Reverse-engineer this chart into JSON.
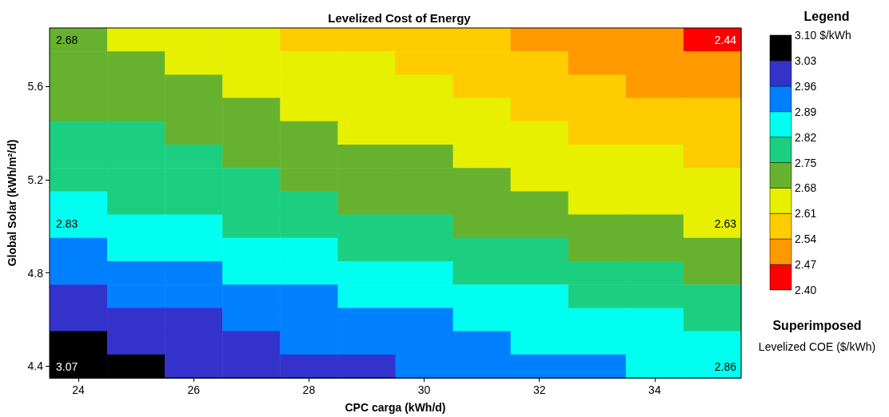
{
  "chart_data": {
    "type": "heatmap",
    "title": "Levelized Cost of Energy",
    "xlabel": "CPC carga (kWh/d)",
    "ylabel": "Global Solar (kWh/m²/d)",
    "legend_title": "Legend",
    "categories": [
      "24",
      null,
      "26",
      null,
      "28",
      null,
      "30",
      null,
      "32",
      null,
      "34",
      null
    ],
    "y_categories": [
      null,
      null,
      "5.6",
      null,
      null,
      null,
      "5.2",
      null,
      null,
      null,
      "4.8",
      null,
      null,
      null,
      "4.4"
    ],
    "clim": [
      2.4,
      3.1
    ],
    "cticks": [
      {
        "value": 2.4,
        "label": "2.40"
      },
      2.47,
      2.54,
      2.61,
      2.68,
      2.75,
      2.82,
      2.89,
      2.96,
      3.03,
      {
        "value": 3.1,
        "label": "3.10 $/kWh"
      }
    ],
    "colors": [
      "#ff0000",
      "#ff9900",
      "#ffcc00",
      "#e6f000",
      "#66b22e",
      "#1ccf80",
      "#00fff0",
      "#0080ff",
      "#3333cc",
      "#000000"
    ],
    "cells": [
      [
        2.69,
        2.67,
        2.65,
        2.63,
        2.61,
        2.59,
        2.57,
        2.55,
        2.53,
        2.51,
        2.49,
        2.47
      ],
      [
        2.71,
        2.7,
        2.68,
        2.66,
        2.64,
        2.62,
        2.6,
        2.58,
        2.56,
        2.54,
        2.52,
        2.5
      ],
      [
        2.73,
        2.72,
        2.7,
        2.68,
        2.66,
        2.64,
        2.62,
        2.6,
        2.58,
        2.56,
        2.54,
        2.52
      ],
      [
        2.75,
        2.74,
        2.72,
        2.7,
        2.68,
        2.66,
        2.64,
        2.62,
        2.6,
        2.59,
        2.57,
        2.55
      ],
      [
        2.77,
        2.76,
        2.74,
        2.72,
        2.7,
        2.68,
        2.67,
        2.65,
        2.63,
        2.61,
        2.59,
        2.57
      ],
      [
        2.79,
        2.78,
        2.76,
        2.74,
        2.72,
        2.71,
        2.69,
        2.67,
        2.65,
        2.63,
        2.62,
        2.6
      ],
      [
        2.82,
        2.8,
        2.78,
        2.76,
        2.75,
        2.73,
        2.71,
        2.69,
        2.68,
        2.66,
        2.64,
        2.62
      ],
      [
        2.84,
        2.82,
        2.8,
        2.79,
        2.77,
        2.75,
        2.74,
        2.72,
        2.7,
        2.68,
        2.67,
        2.65
      ],
      [
        2.87,
        2.85,
        2.84,
        2.82,
        2.8,
        2.79,
        2.77,
        2.75,
        2.73,
        2.72,
        2.7,
        2.68
      ],
      [
        2.91,
        2.89,
        2.87,
        2.85,
        2.84,
        2.82,
        2.8,
        2.78,
        2.77,
        2.75,
        2.73,
        2.71
      ],
      [
        2.94,
        2.92,
        2.9,
        2.89,
        2.87,
        2.85,
        2.83,
        2.81,
        2.8,
        2.78,
        2.76,
        2.74
      ],
      [
        2.97,
        2.95,
        2.93,
        2.92,
        2.9,
        2.88,
        2.86,
        2.85,
        2.83,
        2.81,
        2.79,
        2.78
      ],
      [
        3.0,
        2.99,
        2.97,
        2.95,
        2.93,
        2.91,
        2.9,
        2.88,
        2.86,
        2.84,
        2.83,
        2.81
      ],
      [
        3.04,
        3.02,
        3.0,
        2.98,
        2.96,
        2.95,
        2.93,
        2.91,
        2.89,
        2.88,
        2.86,
        2.84
      ],
      [
        3.07,
        3.05,
        3.03,
        3.01,
        3.0,
        2.98,
        2.96,
        2.94,
        2.92,
        2.91,
        2.89,
        2.87
      ]
    ],
    "annotations": [
      "2.68",
      "2.44",
      "2.83",
      "2.63",
      "3.07",
      "2.86",
      "Superimposed",
      "Levelized COE ($/kWh)"
    ]
  }
}
